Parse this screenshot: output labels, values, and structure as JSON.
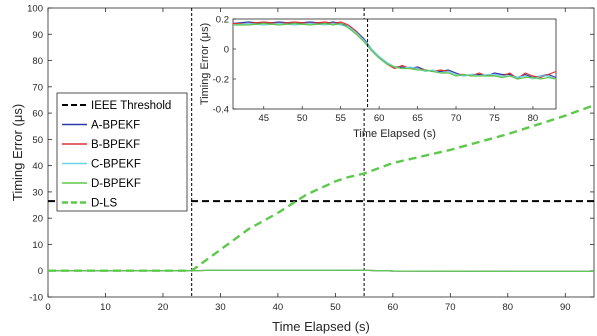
{
  "chart_data": [
    {
      "type": "line",
      "xlabel": "Time Elapsed (s)",
      "ylabel": "Timing Error (μs)",
      "xlim": [
        0,
        95
      ],
      "ylim": [
        -10,
        100
      ],
      "xticks": [
        0,
        10,
        20,
        30,
        40,
        50,
        60,
        70,
        80,
        90
      ],
      "yticks": [
        -10,
        0,
        10,
        20,
        30,
        40,
        50,
        60,
        70,
        80,
        90,
        100
      ],
      "legend_position": "center-left",
      "legend": [
        "IEEE Threshold",
        "A-BPEKF",
        "B-BPEKF",
        "C-BPEKF",
        "D-BPEKF",
        "D-LS"
      ],
      "series": [
        {
          "name": "IEEE Threshold",
          "color": "#000000",
          "style": "dashed",
          "x": [
            0,
            95
          ],
          "y": [
            26.5,
            26.5
          ]
        },
        {
          "name": "A-BPEKF",
          "color": "#2b3aa8",
          "style": "solid",
          "x": [
            0,
            25,
            30,
            40,
            50,
            55,
            60,
            70,
            80,
            95
          ],
          "y": [
            0,
            0,
            0.2,
            0.2,
            0.2,
            0.15,
            -0.1,
            -0.15,
            -0.2,
            -0.2
          ]
        },
        {
          "name": "B-BPEKF",
          "color": "#e03030",
          "style": "solid",
          "x": [
            0,
            25,
            30,
            40,
            50,
            55,
            60,
            70,
            80,
            95
          ],
          "y": [
            0,
            0,
            0.2,
            0.2,
            0.2,
            0.15,
            -0.1,
            -0.15,
            -0.2,
            -0.2
          ]
        },
        {
          "name": "C-BPEKF",
          "color": "#6fd3e6",
          "style": "solid",
          "x": [
            0,
            25,
            30,
            40,
            50,
            55,
            60,
            70,
            80,
            95
          ],
          "y": [
            0,
            0,
            0.2,
            0.2,
            0.2,
            0.15,
            -0.1,
            -0.15,
            -0.2,
            -0.2
          ]
        },
        {
          "name": "D-BPEKF",
          "color": "#5cc94a",
          "style": "solid",
          "x": [
            0,
            25,
            30,
            40,
            50,
            55,
            60,
            70,
            80,
            95
          ],
          "y": [
            0,
            0,
            0.2,
            0.2,
            0.2,
            0.15,
            -0.1,
            -0.15,
            -0.2,
            -0.2
          ]
        },
        {
          "name": "D-LS",
          "color": "#5cc94a",
          "style": "dashed",
          "x": [
            0,
            25,
            30,
            35,
            40,
            45,
            50,
            52,
            55,
            60,
            70,
            80,
            90,
            95
          ],
          "y": [
            0,
            0,
            8,
            16,
            22,
            29,
            34,
            35.5,
            37,
            41,
            46,
            52,
            59,
            63
          ]
        }
      ],
      "vlines": [
        25,
        55
      ]
    },
    {
      "type": "line",
      "xlabel": "Time Elapsed (s)",
      "ylabel": "Timing Error (μs)",
      "xlim": [
        41,
        83
      ],
      "ylim": [
        -0.4,
        0.2
      ],
      "xticks": [
        45,
        50,
        55,
        60,
        65,
        70,
        75,
        80
      ],
      "yticks": [
        -0.4,
        -0.2,
        0,
        0.2
      ],
      "series": [
        {
          "name": "A-BPEKF",
          "color": "#2b3aa8",
          "x": [
            41,
            43,
            45,
            47,
            49,
            51,
            53,
            54,
            55,
            56,
            57,
            58,
            59,
            60,
            61,
            62,
            63,
            64,
            65,
            66,
            67,
            68,
            69,
            70,
            71,
            72,
            73,
            74,
            75,
            76,
            77,
            78,
            79,
            80,
            81,
            82,
            83
          ],
          "y": [
            0.17,
            0.18,
            0.17,
            0.18,
            0.17,
            0.18,
            0.17,
            0.18,
            0.17,
            0.15,
            0.12,
            0.07,
            0.0,
            -0.05,
            -0.09,
            -0.12,
            -0.12,
            -0.13,
            -0.12,
            -0.14,
            -0.15,
            -0.15,
            -0.14,
            -0.16,
            -0.18,
            -0.17,
            -0.17,
            -0.18,
            -0.16,
            -0.17,
            -0.17,
            -0.19,
            -0.17,
            -0.19,
            -0.18,
            -0.17,
            -0.19
          ]
        },
        {
          "name": "B-BPEKF",
          "color": "#e03030",
          "x": [
            41,
            43,
            45,
            47,
            49,
            51,
            53,
            54,
            55,
            56,
            57,
            58,
            59,
            60,
            61,
            62,
            63,
            64,
            65,
            66,
            67,
            68,
            69,
            70,
            71,
            72,
            73,
            74,
            75,
            76,
            77,
            78,
            79,
            80,
            81,
            82,
            83
          ],
          "y": [
            0.17,
            0.17,
            0.18,
            0.17,
            0.18,
            0.17,
            0.18,
            0.17,
            0.18,
            0.16,
            0.12,
            0.06,
            -0.01,
            -0.06,
            -0.1,
            -0.13,
            -0.11,
            -0.13,
            -0.13,
            -0.14,
            -0.15,
            -0.14,
            -0.15,
            -0.17,
            -0.17,
            -0.18,
            -0.16,
            -0.18,
            -0.17,
            -0.18,
            -0.16,
            -0.2,
            -0.16,
            -0.18,
            -0.19,
            -0.17,
            -0.15
          ]
        },
        {
          "name": "C-BPEKF",
          "color": "#6fd3e6",
          "x": [
            41,
            43,
            45,
            47,
            49,
            51,
            53,
            54,
            55,
            56,
            57,
            58,
            59,
            60,
            61,
            62,
            63,
            64,
            65,
            66,
            67,
            68,
            69,
            70,
            71,
            72,
            73,
            74,
            75,
            76,
            77,
            78,
            79,
            80,
            81,
            82,
            83
          ],
          "y": [
            0.16,
            0.17,
            0.16,
            0.17,
            0.16,
            0.17,
            0.16,
            0.17,
            0.16,
            0.15,
            0.11,
            0.06,
            0.0,
            -0.05,
            -0.09,
            -0.12,
            -0.13,
            -0.12,
            -0.13,
            -0.15,
            -0.14,
            -0.16,
            -0.15,
            -0.17,
            -0.18,
            -0.17,
            -0.18,
            -0.17,
            -0.17,
            -0.18,
            -0.18,
            -0.19,
            -0.18,
            -0.2,
            -0.18,
            -0.18,
            -0.2
          ]
        },
        {
          "name": "D-BPEKF",
          "color": "#5cc94a",
          "x": [
            41,
            43,
            45,
            47,
            49,
            51,
            53,
            54,
            55,
            56,
            57,
            58,
            59,
            60,
            61,
            62,
            63,
            64,
            65,
            66,
            67,
            68,
            69,
            70,
            71,
            72,
            73,
            74,
            75,
            76,
            77,
            78,
            79,
            80,
            81,
            82,
            83
          ],
          "y": [
            0.16,
            0.16,
            0.17,
            0.16,
            0.17,
            0.16,
            0.17,
            0.16,
            0.17,
            0.14,
            0.1,
            0.05,
            -0.01,
            -0.06,
            -0.1,
            -0.12,
            -0.13,
            -0.13,
            -0.14,
            -0.14,
            -0.15,
            -0.16,
            -0.16,
            -0.18,
            -0.17,
            -0.18,
            -0.18,
            -0.18,
            -0.18,
            -0.19,
            -0.18,
            -0.2,
            -0.19,
            -0.19,
            -0.2,
            -0.19,
            -0.2
          ]
        }
      ],
      "vlines": [
        58.5
      ]
    }
  ]
}
